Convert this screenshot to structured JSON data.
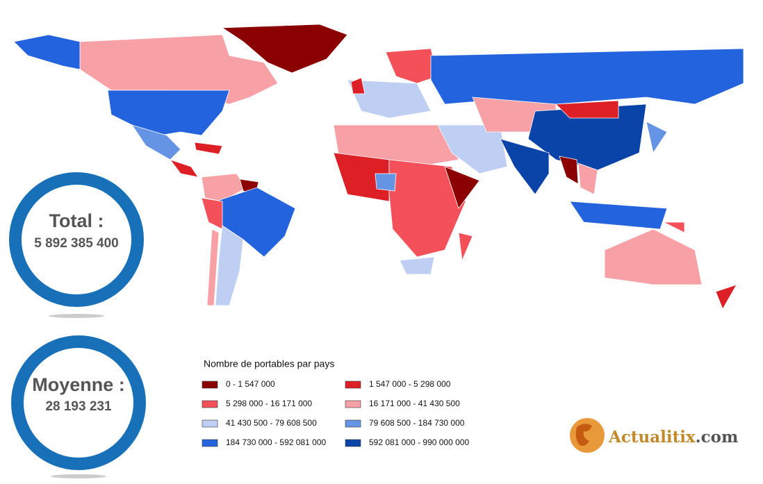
{
  "stats": [
    {
      "label": "Total :",
      "value": "5 892 385 400"
    },
    {
      "label": "Moyenne :",
      "value": "28 193 231"
    }
  ],
  "legend": {
    "title": "Nombre de portables par pays",
    "items": [
      {
        "label": "0 - 1 547 000",
        "color": "#8b0000"
      },
      {
        "label": "1 547 000 - 5 298 000",
        "color": "#dc2026"
      },
      {
        "label": "5 298 000 - 16 171 000",
        "color": "#f4505a"
      },
      {
        "label": "16 171 000 - 41 430 500",
        "color": "#f7a0a6"
      },
      {
        "label": "41 430 500 - 79 608 500",
        "color": "#bfcff3"
      },
      {
        "label": "79 608 500 - 184 730 000",
        "color": "#6694e4"
      },
      {
        "label": "184 730 000 - 592 081 000",
        "color": "#2463de"
      },
      {
        "label": "592 081 000 - 990 000 000",
        "color": "#0a44a8"
      }
    ]
  },
  "logo": {
    "name": "Actualitix",
    "suffix": ".com"
  }
}
